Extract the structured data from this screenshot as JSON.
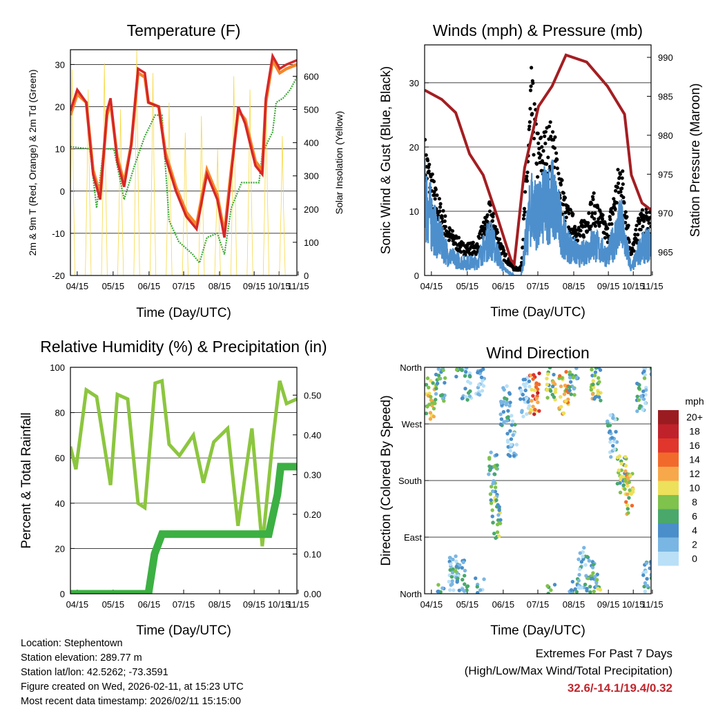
{
  "chart_data": [
    {
      "type": "line",
      "title": "Temperature (F)",
      "xlabel": "Time (Day/UTC)",
      "ylabel": "2m & 9m T (Red, Orange) & 2m Td (Green)",
      "ylabel_right": "Solar Insolation (Yellow)",
      "xlim": [
        0,
        7
      ],
      "ylim": [
        -20,
        33.5
      ],
      "ylim_right": [
        0,
        680
      ],
      "xticks": [
        {
          "x": 0.21,
          "label": "04/15"
        },
        {
          "x": 1.32,
          "label": "05/15"
        },
        {
          "x": 2.43,
          "label": "06/15"
        },
        {
          "x": 3.5,
          "label": "07/15"
        },
        {
          "x": 4.61,
          "label": "08/15"
        },
        {
          "x": 5.68,
          "label": "09/15"
        },
        {
          "x": 6.45,
          "label": "10/15"
        },
        {
          "x": 7.04,
          "label": "11/15"
        }
      ],
      "yticks": [
        -20,
        -10,
        0,
        10,
        20,
        30
      ],
      "yticks_right": [
        0,
        100,
        200,
        300,
        400,
        500,
        600
      ],
      "series": [
        {
          "name": "2m T",
          "color": "#d62728",
          "x": [
            0,
            0.21,
            0.49,
            0.7,
            0.92,
            1.13,
            1.24,
            1.45,
            1.66,
            1.88,
            2.09,
            2.3,
            2.41,
            2.73,
            2.94,
            3.26,
            3.58,
            3.9,
            4.22,
            4.54,
            4.76,
            4.97,
            5.19,
            5.4,
            5.72,
            5.93,
            6.04,
            6.25,
            6.47,
            6.68,
            7
          ],
          "y": [
            19,
            24,
            21,
            4,
            -2,
            19,
            22,
            7,
            1,
            11,
            29,
            28,
            21,
            20,
            8,
            0,
            -6,
            -9,
            4,
            -2,
            -11,
            4,
            20,
            16,
            6,
            4,
            22,
            32,
            29,
            30,
            31
          ]
        },
        {
          "name": "9m T",
          "color": "#f5862a",
          "x": [
            0,
            0.21,
            0.49,
            0.7,
            0.92,
            1.13,
            1.24,
            1.45,
            1.66,
            1.88,
            2.09,
            2.3,
            2.41,
            2.73,
            2.94,
            3.26,
            3.58,
            3.9,
            4.22,
            4.54,
            4.76,
            4.97,
            5.19,
            5.4,
            5.72,
            5.93,
            6.04,
            6.25,
            6.47,
            6.68,
            7
          ],
          "y": [
            18,
            23,
            21,
            5,
            -1,
            18,
            21,
            8,
            2,
            11,
            28,
            27,
            21,
            20,
            9,
            1,
            -5,
            -8,
            5,
            -1,
            -10,
            5,
            19,
            17,
            7,
            5,
            21,
            31,
            28,
            29,
            30
          ]
        },
        {
          "name": "2m Td",
          "color": "#3aa535",
          "x": [
            0,
            0.6,
            0.81,
            1.02,
            1.34,
            1.66,
            1.98,
            2.3,
            2.62,
            2.83,
            3.05,
            3.35,
            3.78,
            3.99,
            4.22,
            4.54,
            4.76,
            4.97,
            5.29,
            5.83,
            5.93,
            6.25,
            6.36,
            6.57,
            6.79,
            7
          ],
          "y": [
            10.5,
            10,
            -4,
            10,
            10,
            -2,
            6,
            13,
            18,
            18,
            -7,
            -12,
            -15,
            -17,
            -11,
            -10,
            -15,
            -4,
            2,
            2,
            9,
            14,
            21,
            22,
            24,
            27
          ]
        },
        {
          "name": "Solar",
          "color": "#f7d842",
          "peaks": [
            {
              "t": 0.05,
              "v": 620
            },
            {
              "t": 0.55,
              "v": 560
            },
            {
              "t": 1.05,
              "v": 640
            },
            {
              "t": 1.55,
              "v": 500
            },
            {
              "t": 2.05,
              "v": 680
            },
            {
              "t": 2.55,
              "v": 610
            },
            {
              "t": 3.05,
              "v": 520
            },
            {
              "t": 3.55,
              "v": 430
            },
            {
              "t": 4.05,
              "v": 480
            },
            {
              "t": 4.55,
              "v": 380
            },
            {
              "t": 5.05,
              "v": 600
            },
            {
              "t": 5.55,
              "v": 560
            },
            {
              "t": 6.05,
              "v": 520
            },
            {
              "t": 6.55,
              "v": 420
            }
          ]
        }
      ]
    },
    {
      "type": "scatter",
      "title": "Winds (mph) & Pressure (mb)",
      "xlabel": "Time (Day/UTC)",
      "ylabel": "Sonic Wind & Gust (Blue, Black)",
      "ylabel_right": "Station Pressure (Maroon)",
      "xlim": [
        0,
        7
      ],
      "ylim": [
        0,
        35.9
      ],
      "ylim_right": [
        962,
        991.6
      ],
      "xticks": [
        {
          "x": 0.21,
          "label": "04/15"
        },
        {
          "x": 1.32,
          "label": "05/15"
        },
        {
          "x": 2.43,
          "label": "06/15"
        },
        {
          "x": 3.5,
          "label": "07/15"
        },
        {
          "x": 4.61,
          "label": "08/15"
        },
        {
          "x": 5.68,
          "label": "09/15"
        },
        {
          "x": 6.45,
          "label": "10/15"
        },
        {
          "x": 7.04,
          "label": "11/15"
        }
      ],
      "yticks": [
        0,
        10,
        20,
        30
      ],
      "yticks_right": [
        965,
        970,
        975,
        980,
        985,
        990
      ],
      "series": [
        {
          "name": "Wind",
          "color": "#4d8fcc",
          "x": [
            0,
            0.32,
            0.75,
            1.17,
            1.6,
            2.02,
            2.45,
            2.77,
            2.98,
            3.3,
            3.52,
            3.73,
            3.94,
            4.37,
            4.79,
            5.22,
            5.65,
            6.07,
            6.39,
            6.66,
            7
          ],
          "y": [
            12,
            7,
            3,
            2,
            2,
            6,
            1,
            0,
            0,
            11,
            9,
            11,
            12,
            5,
            3,
            5,
            3,
            8,
            1,
            4,
            5
          ]
        },
        {
          "name": "Gust",
          "color": "#000000",
          "x": [
            0,
            0.32,
            0.75,
            1.17,
            1.6,
            2.02,
            2.45,
            2.77,
            2.98,
            3.3,
            3.52,
            3.73,
            3.94,
            4.37,
            4.79,
            5.22,
            5.65,
            6.07,
            6.39,
            6.66,
            7
          ],
          "y": [
            17,
            11,
            6,
            4,
            4,
            9,
            3,
            1,
            1,
            25,
            17,
            18,
            19,
            9,
            6,
            10,
            6,
            15,
            3,
            8,
            8
          ]
        },
        {
          "name": "Pressure",
          "color": "#a31e22",
          "x": [
            0,
            0.53,
            0.96,
            1.39,
            1.81,
            2.24,
            2.67,
            2.77,
            3.09,
            3.52,
            3.94,
            4.37,
            5.01,
            5.65,
            6.18,
            6.39,
            6.72,
            7
          ],
          "y": [
            985.8,
            984.6,
            982.9,
            977.6,
            974.9,
            969.6,
            964.0,
            963.5,
            975.8,
            983.7,
            986.3,
            990.3,
            989.4,
            986.3,
            982.7,
            974.9,
            971.3,
            970.4
          ]
        }
      ]
    },
    {
      "type": "line",
      "title": "Relative Humidity (%) & Precipitation (in)",
      "xlabel": "Time (Day/UTC)",
      "ylabel": "Percent & Total Rainfall",
      "xlim": [
        0,
        7
      ],
      "ylim": [
        0,
        100
      ],
      "ylim_right": [
        0,
        0.57
      ],
      "xticks": [
        {
          "x": 0.21,
          "label": "04/15"
        },
        {
          "x": 1.32,
          "label": "05/15"
        },
        {
          "x": 2.43,
          "label": "06/15"
        },
        {
          "x": 3.5,
          "label": "07/15"
        },
        {
          "x": 4.61,
          "label": "08/15"
        },
        {
          "x": 5.68,
          "label": "09/15"
        },
        {
          "x": 6.45,
          "label": "10/15"
        },
        {
          "x": 7.04,
          "label": "11/15"
        }
      ],
      "yticks": [
        0,
        20,
        40,
        60,
        80,
        100
      ],
      "yticks_right": [
        "0.00",
        "0.10",
        "0.20",
        "0.30",
        "0.40",
        "0.50"
      ],
      "series": [
        {
          "name": "RH",
          "color": "#8cc63f",
          "x": [
            0,
            0.17,
            0.49,
            0.81,
            1.13,
            1.24,
            1.45,
            1.77,
            2.09,
            2.3,
            2.62,
            2.83,
            3.05,
            3.37,
            3.8,
            4.11,
            4.43,
            4.86,
            5.18,
            5.61,
            5.93,
            6.25,
            6.47,
            6.68,
            7
          ],
          "y": [
            65,
            55,
            90,
            87,
            58,
            48,
            88,
            86,
            40,
            38,
            93,
            94,
            66,
            61,
            70,
            49,
            67,
            73,
            30,
            73,
            21,
            67,
            94,
            84,
            86
          ]
        },
        {
          "name": "Precipitation",
          "color": "#3cb043",
          "x": [
            0,
            2.41,
            2.6,
            2.83,
            6.13,
            6.4,
            6.5,
            7
          ],
          "y": [
            0,
            0,
            0.1,
            0.15,
            0.15,
            0.25,
            0.32,
            0.32
          ]
        }
      ]
    },
    {
      "type": "scatter",
      "title": "Wind Direction",
      "xlabel": "Time (Day/UTC)",
      "ylabel": "Direction (Colored By Speed)",
      "xlim": [
        0,
        7
      ],
      "ylim": [
        0,
        360
      ],
      "xticks": [
        {
          "x": 0.21,
          "label": "04/15"
        },
        {
          "x": 1.32,
          "label": "05/15"
        },
        {
          "x": 2.43,
          "label": "06/15"
        },
        {
          "x": 3.5,
          "label": "07/15"
        },
        {
          "x": 4.61,
          "label": "08/15"
        },
        {
          "x": 5.68,
          "label": "09/15"
        },
        {
          "x": 6.45,
          "label": "10/15"
        },
        {
          "x": 7.04,
          "label": "11/15"
        }
      ],
      "yticks": [
        {
          "v": 360,
          "label": "North"
        },
        {
          "v": 270,
          "label": "West"
        },
        {
          "v": 180,
          "label": "South"
        },
        {
          "v": 90,
          "label": "East"
        },
        {
          "v": 0,
          "label": "North"
        }
      ],
      "clusters": [
        {
          "t": 0.2,
          "dir": 310,
          "spd": 9
        },
        {
          "t": 0.5,
          "dir": 340,
          "spd": 4
        },
        {
          "t": 0.9,
          "dir": 30,
          "spd": 3
        },
        {
          "t": 1.3,
          "dir": 340,
          "spd": 3
        },
        {
          "t": 1.1,
          "dir": 20,
          "spd": 5
        },
        {
          "t": 1.7,
          "dir": 350,
          "spd": 2
        },
        {
          "t": 2.1,
          "dir": 190,
          "spd": 5
        },
        {
          "t": 2.2,
          "dir": 120,
          "spd": 6
        },
        {
          "t": 2.5,
          "dir": 300,
          "spd": 3
        },
        {
          "t": 2.7,
          "dir": 250,
          "spd": 2
        },
        {
          "t": 3.1,
          "dir": 310,
          "spd": 1
        },
        {
          "t": 3.4,
          "dir": 320,
          "spd": 14
        },
        {
          "t": 3.9,
          "dir": 340,
          "spd": 8
        },
        {
          "t": 4.3,
          "dir": 320,
          "spd": 11
        },
        {
          "t": 4.6,
          "dir": 350,
          "spd": 5
        },
        {
          "t": 4.9,
          "dir": 40,
          "spd": 3
        },
        {
          "t": 5.2,
          "dir": 20,
          "spd": 5
        },
        {
          "t": 5.3,
          "dir": 340,
          "spd": 8
        },
        {
          "t": 5.8,
          "dir": 250,
          "spd": 2
        },
        {
          "t": 6.1,
          "dir": 190,
          "spd": 7
        },
        {
          "t": 6.3,
          "dir": 160,
          "spd": 10
        },
        {
          "t": 6.7,
          "dir": 320,
          "spd": 4
        },
        {
          "t": 6.9,
          "dir": 20,
          "spd": 3
        }
      ],
      "legend": {
        "title": "mph",
        "labels": [
          "20+",
          "18",
          "16",
          "14",
          "12",
          "10",
          "8",
          "6",
          "4",
          "2",
          "0"
        ],
        "colors": [
          "#9b1c20",
          "#c0222b",
          "#e0362c",
          "#f26a2b",
          "#f7a84a",
          "#ede05a",
          "#7fc24c",
          "#4aa86b",
          "#4a8fc9",
          "#7ab6e3",
          "#b9e0f7"
        ]
      }
    }
  ],
  "info": {
    "location": "Location: Stephentown",
    "elevation": "Station elevation: 289.77 m",
    "latlon": "Station lat/lon: 42.5262; -73.3591",
    "created": "Figure created on Wed, 2026-02-11, at 15:23 UTC",
    "recent": "Most recent data timestamp: 2026/02/11 15:15:00"
  },
  "extremes": {
    "title": "Extremes For Past 7 Days",
    "subtitle": "(High/Low/Max Wind/Total Precipitation)",
    "values": "32.6/-14.1/19.4/0.32"
  }
}
